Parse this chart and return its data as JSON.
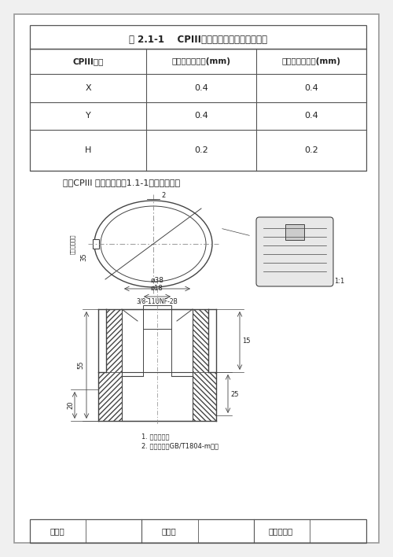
{
  "title": "表 2.1-1    CPIII标志棱镜组件安装精度要求",
  "table_headers": [
    "CPIII标志",
    "重复性安装误差(mm)",
    "互换性安装误差(mm)"
  ],
  "table_rows": [
    [
      "X",
      "0.4",
      "0.4"
    ],
    [
      "Y",
      "0.4",
      "0.4"
    ],
    [
      "H",
      "0.2",
      "0.2"
    ]
  ],
  "subtitle": "京石CPIII 预埋件采用图1.1-1所示预埋件：",
  "notes": [
    "1. 去除毛刺。",
    "2. 未注公差按GB/T1804-m级。"
  ],
  "footer_labels": [
    "交底人",
    "复核人",
    "技术负责人"
  ],
  "bg_color": "#f0f0f0",
  "paper_color": "#ffffff",
  "border_color": "#888888",
  "line_color": "#555555",
  "text_color": "#222222",
  "drawing_line_color": "#444444"
}
